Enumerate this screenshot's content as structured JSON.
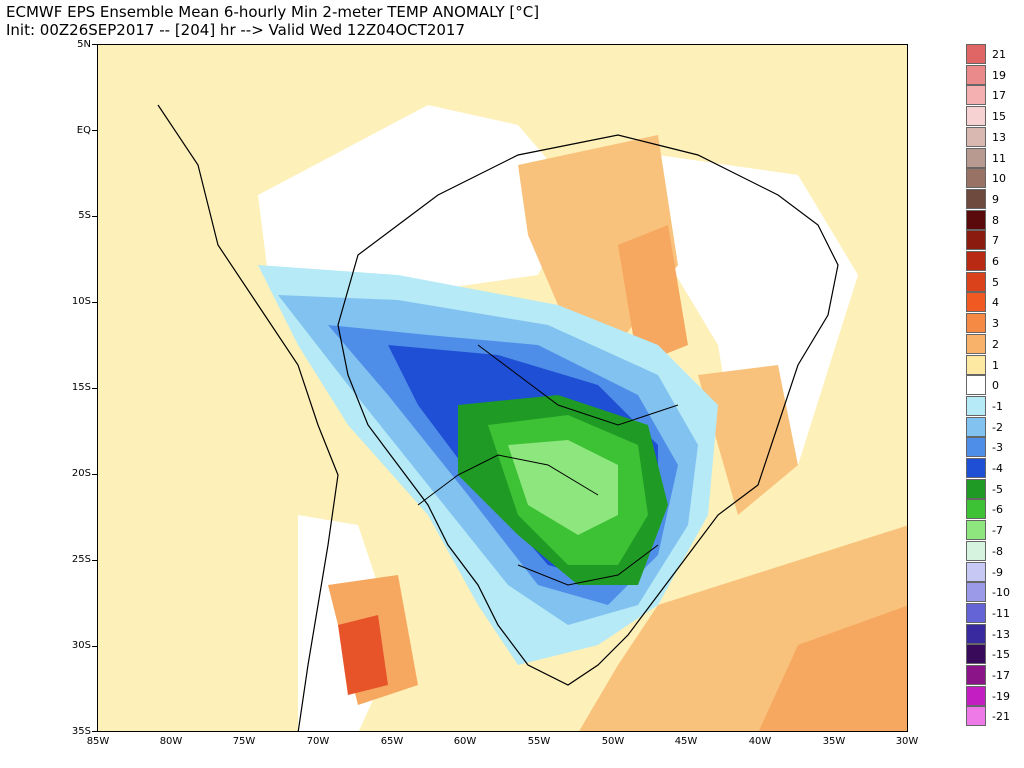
{
  "title_line1": "ECMWF EPS Ensemble Mean 6-hourly Min 2-meter TEMP ANOMALY [°C]",
  "title_line2": "Init: 00Z26SEP2017 -- [204] hr --> Valid Wed 12Z04OCT2017",
  "lat_labels": [
    "5N",
    "EQ",
    "5S",
    "10S",
    "15S",
    "20S",
    "25S",
    "30S",
    "35S"
  ],
  "lon_labels": [
    "85W",
    "80W",
    "75W",
    "70W",
    "65W",
    "60W",
    "55W",
    "50W",
    "45W",
    "40W",
    "35W",
    "30W"
  ],
  "legend": [
    {
      "label": "21",
      "color": "#e06666"
    },
    {
      "label": "19",
      "color": "#ea8a8a"
    },
    {
      "label": "17",
      "color": "#f4b0b0"
    },
    {
      "label": "15",
      "color": "#f7d2d2"
    },
    {
      "label": "13",
      "color": "#d8b8b0"
    },
    {
      "label": "11",
      "color": "#b89a90"
    },
    {
      "label": "10",
      "color": "#977265"
    },
    {
      "label": "9",
      "color": "#6e4a3e"
    },
    {
      "label": "8",
      "color": "#5a0a0a"
    },
    {
      "label": "7",
      "color": "#8b1a0f"
    },
    {
      "label": "6",
      "color": "#b82a14"
    },
    {
      "label": "5",
      "color": "#d9421b"
    },
    {
      "label": "4",
      "color": "#f05a22"
    },
    {
      "label": "3",
      "color": "#f58a44"
    },
    {
      "label": "2",
      "color": "#f8b26a"
    },
    {
      "label": "1",
      "color": "#fde9a2"
    },
    {
      "label": "0",
      "color": "#ffffff"
    },
    {
      "label": "-1",
      "color": "#b5eaf6"
    },
    {
      "label": "-2",
      "color": "#82c2f0"
    },
    {
      "label": "-3",
      "color": "#4f8ee8"
    },
    {
      "label": "-4",
      "color": "#1e4fd4"
    },
    {
      "label": "-5",
      "color": "#1f9a24"
    },
    {
      "label": "-6",
      "color": "#3cc234"
    },
    {
      "label": "-7",
      "color": "#8ee67e"
    },
    {
      "label": "-8",
      "color": "#d6f3e0"
    },
    {
      "label": "-9",
      "color": "#c8c8f4"
    },
    {
      "label": "-10",
      "color": "#9a9ae8"
    },
    {
      "label": "-11",
      "color": "#6464d6"
    },
    {
      "label": "-13",
      "color": "#3a2aa0"
    },
    {
      "label": "-15",
      "color": "#3a0a5a"
    },
    {
      "label": "-17",
      "color": "#8a1488"
    },
    {
      "label": "-19",
      "color": "#c21ec2"
    },
    {
      "label": "-21",
      "color": "#ee7ae8"
    }
  ]
}
